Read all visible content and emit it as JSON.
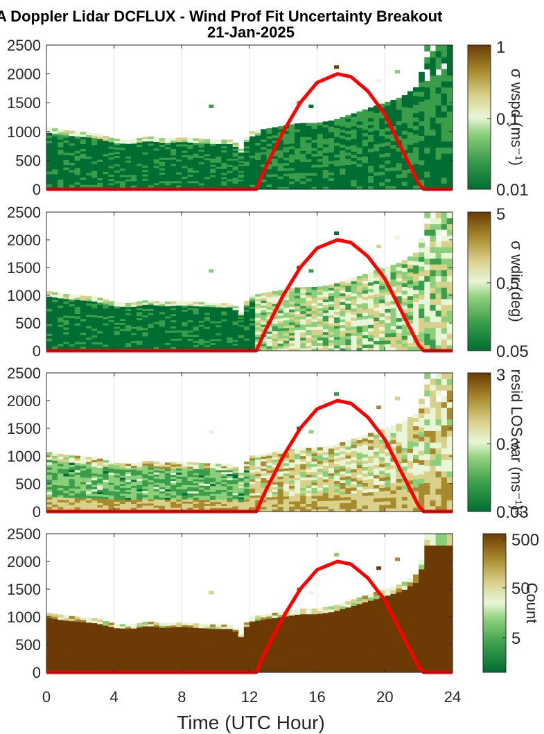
{
  "figure": {
    "title_line1": "A Doppler Lidar DCFLUX - Wind Prof Fit Uncertainty Breakout",
    "title_line2": "21-Jan-2025",
    "xlabel": "Time (UTC Hour)",
    "x_ticks": [
      "0",
      "4",
      "8",
      "12",
      "16",
      "20",
      "24"
    ],
    "y_ticks": [
      "0",
      "500",
      "1000",
      "1500",
      "2000",
      "2500"
    ]
  },
  "colors": {
    "curve": "#ff0000",
    "colormap": [
      "#006d32",
      "#3a9d4a",
      "#8ccf7a",
      "#e8f5d6",
      "#d9d08a",
      "#a88a2e",
      "#6b3a05"
    ]
  },
  "panels": [
    {
      "colorbar_label": "σ wspd (ms⁻¹)",
      "cb_ticks": [
        "1",
        "0.1",
        "0.01"
      ]
    },
    {
      "colorbar_label": "σ wdir (deg)",
      "cb_ticks": [
        "5",
        "0.5",
        "0.05"
      ]
    },
    {
      "colorbar_label": "resid LOS var (ms⁻¹)²",
      "cb_ticks": [
        "3",
        "0.3",
        "0.03"
      ]
    },
    {
      "colorbar_label": "Count",
      "cb_ticks": [
        "500",
        "50",
        "5"
      ]
    }
  ],
  "chart_data": {
    "type": "heatmap",
    "xlim": [
      0,
      24
    ],
    "ylim": [
      0,
      2500
    ],
    "grid": true,
    "boundary_layer_top": {
      "x": [
        0,
        1,
        2,
        3,
        4,
        5,
        6,
        7,
        8,
        9,
        10,
        11,
        11.5,
        12,
        13,
        14,
        15,
        16,
        17,
        18,
        19,
        20,
        21,
        22,
        22.5
      ],
      "y": [
        1080,
        1030,
        1000,
        970,
        880,
        860,
        920,
        880,
        900,
        880,
        860,
        860,
        700,
        1000,
        1050,
        1100,
        1150,
        1150,
        1200,
        1300,
        1400,
        1500,
        1600,
        1800,
        2500
      ]
    },
    "curve": {
      "name": "",
      "x": [
        0,
        12.4,
        13,
        14,
        15,
        16,
        17.2,
        18,
        19,
        20,
        21,
        22,
        22.3,
        24
      ],
      "y": [
        0,
        0,
        400,
        1000,
        1500,
        1850,
        2000,
        1950,
        1700,
        1300,
        700,
        100,
        0,
        0
      ]
    }
  }
}
